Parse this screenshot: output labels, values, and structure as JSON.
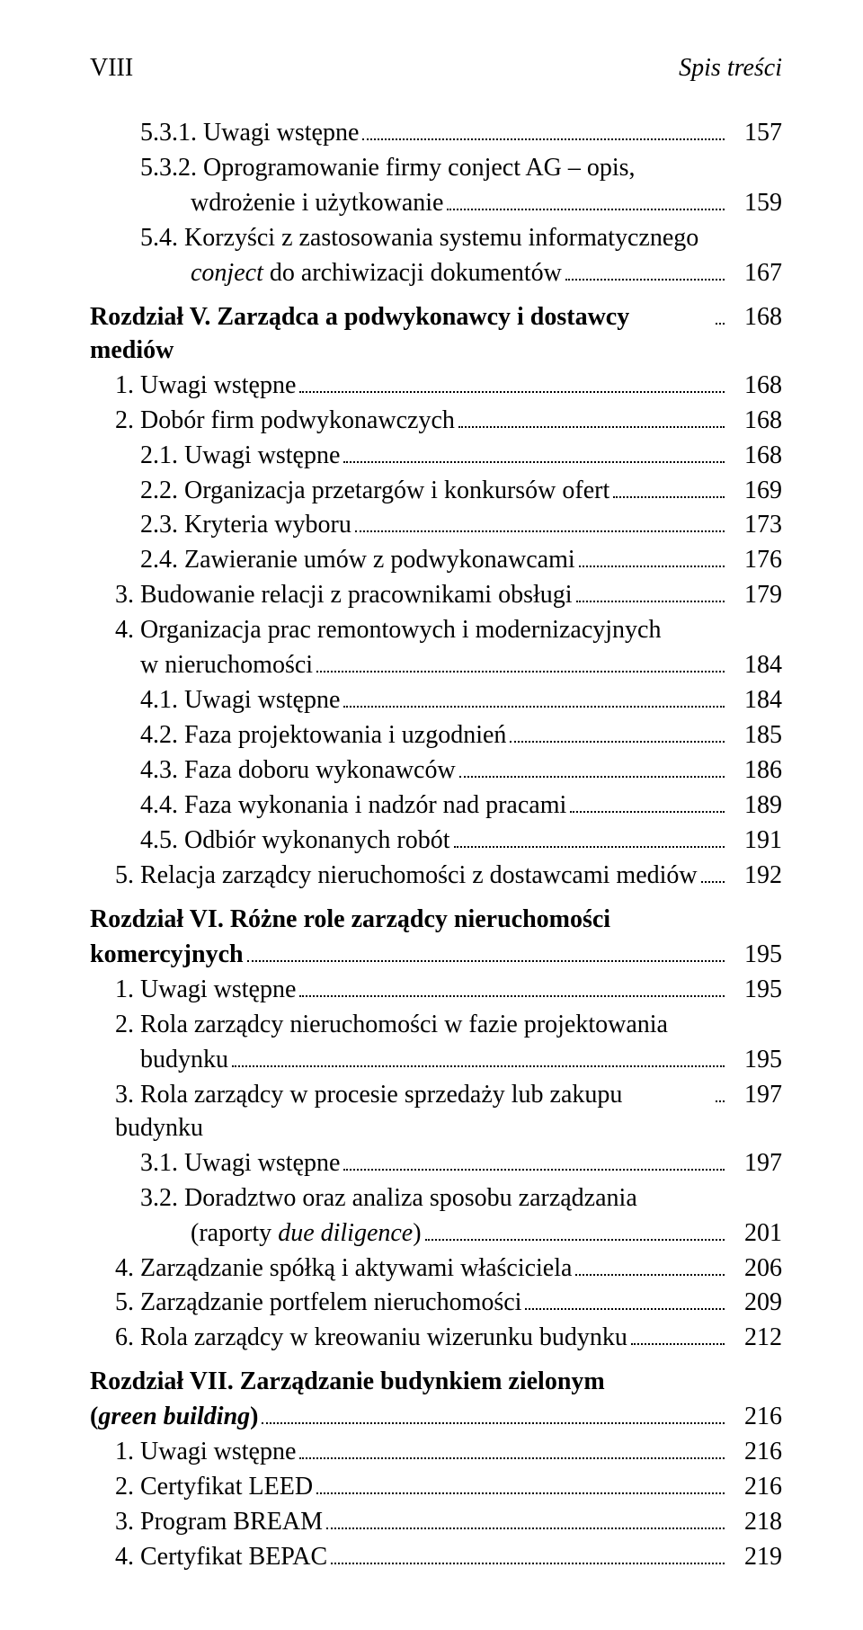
{
  "header": {
    "roman": "VIII",
    "title": "Spis treści"
  },
  "entries": [
    {
      "level": 2,
      "pre": "5.3.1.",
      "text": "Uwagi wstępne",
      "page": "157"
    },
    {
      "level": 2,
      "pre": "5.3.2.",
      "text": "Oprogramowanie firmy conject AG – opis,",
      "wrap": true
    },
    {
      "level": 2,
      "cont": 2,
      "text": "wdrożenie i użytkowanie",
      "page": "159"
    },
    {
      "level": 2,
      "pre": "5.4.",
      "text": "Korzyści z zastosowania systemu informatycznego",
      "wrap": true
    },
    {
      "level": 2,
      "cont": 2,
      "textHtml": "<span class='italic'>conject</span> do archiwizacji dokumentów",
      "page": "167"
    },
    {
      "chapterStart": true
    },
    {
      "level": 0,
      "bold": true,
      "pre": "Rozdział V.",
      "text": "Zarządca a podwykonawcy i dostawcy mediów",
      "page": "168"
    },
    {
      "level": 1,
      "pre": "1.",
      "text": "Uwagi wstępne",
      "page": "168"
    },
    {
      "level": 1,
      "pre": "2.",
      "text": "Dobór firm podwykonawczych",
      "page": "168"
    },
    {
      "level": 2,
      "pre": "2.1.",
      "text": "Uwagi wstępne",
      "page": "168"
    },
    {
      "level": 2,
      "pre": "2.2.",
      "text": "Organizacja przetargów i konkursów ofert",
      "page": "169"
    },
    {
      "level": 2,
      "pre": "2.3.",
      "text": "Kryteria wyboru",
      "page": "173"
    },
    {
      "level": 2,
      "pre": "2.4.",
      "text": "Zawieranie umów z podwykonawcami",
      "page": "176"
    },
    {
      "level": 1,
      "pre": "3.",
      "text": "Budowanie relacji z pracownikami obsługi",
      "page": "179"
    },
    {
      "level": 1,
      "pre": "4.",
      "text": "Organizacja prac remontowych i modernizacyjnych",
      "wrap": true
    },
    {
      "level": 1,
      "cont": 1,
      "text": "w nieruchomości",
      "page": "184"
    },
    {
      "level": 2,
      "pre": "4.1.",
      "text": "Uwagi wstępne",
      "page": "184"
    },
    {
      "level": 2,
      "pre": "4.2.",
      "text": "Faza projektowania i uzgodnień",
      "page": "185"
    },
    {
      "level": 2,
      "pre": "4.3.",
      "text": "Faza doboru wykonawców",
      "page": "186"
    },
    {
      "level": 2,
      "pre": "4.4.",
      "text": "Faza wykonania i nadzór nad pracami",
      "page": "189"
    },
    {
      "level": 2,
      "pre": "4.5.",
      "text": "Odbiór wykonanych robót",
      "page": "191"
    },
    {
      "level": 1,
      "pre": "5.",
      "text": "Relacja zarządcy nieruchomości z dostawcami mediów",
      "page": "192"
    },
    {
      "chapterStart": true
    },
    {
      "level": 0,
      "bold": true,
      "pre": "Rozdział VI.",
      "text": "Różne role zarządcy nieruchomości",
      "wrap": true
    },
    {
      "level": 0,
      "bold": true,
      "cont": 0,
      "text": "komercyjnych",
      "page": "195"
    },
    {
      "level": 1,
      "pre": "1.",
      "text": "Uwagi wstępne",
      "page": "195"
    },
    {
      "level": 1,
      "pre": "2.",
      "text": "Rola zarządcy nieruchomości w fazie projektowania",
      "wrap": true
    },
    {
      "level": 1,
      "cont": 1,
      "text": "budynku",
      "page": "195"
    },
    {
      "level": 1,
      "pre": "3.",
      "text": "Rola zarządcy w procesie sprzedaży lub zakupu budynku",
      "page": "197"
    },
    {
      "level": 2,
      "pre": "3.1.",
      "text": "Uwagi wstępne",
      "page": "197"
    },
    {
      "level": 2,
      "pre": "3.2.",
      "text": "Doradztwo oraz analiza sposobu zarządzania",
      "wrap": true
    },
    {
      "level": 2,
      "cont": 2,
      "textHtml": "(raporty <span class='italic'>due diligence</span>)",
      "page": "201"
    },
    {
      "level": 1,
      "pre": "4.",
      "text": "Zarządzanie spółką i aktywami właściciela",
      "page": "206"
    },
    {
      "level": 1,
      "pre": "5.",
      "text": "Zarządzanie portfelem nieruchomości",
      "page": "209"
    },
    {
      "level": 1,
      "pre": "6.",
      "text": "Rola zarządcy w kreowaniu wizerunku budynku",
      "page": "212"
    },
    {
      "chapterStart": true
    },
    {
      "level": 0,
      "bold": true,
      "pre": "Rozdział VII.",
      "text": "Zarządzanie budynkiem zielonym",
      "wrap": true
    },
    {
      "level": 0,
      "bold": true,
      "cont": 0,
      "textHtml": "(<span class='italic'>green building</span>)",
      "page": "216"
    },
    {
      "level": 1,
      "pre": "1.",
      "text": "Uwagi wstępne",
      "page": "216"
    },
    {
      "level": 1,
      "pre": "2.",
      "text": "Certyfikat LEED",
      "page": "216"
    },
    {
      "level": 1,
      "pre": "3.",
      "text": "Program BREAM",
      "page": "218"
    },
    {
      "level": 1,
      "pre": "4.",
      "text": "Certyfikat BEPAC",
      "page": "219"
    }
  ]
}
